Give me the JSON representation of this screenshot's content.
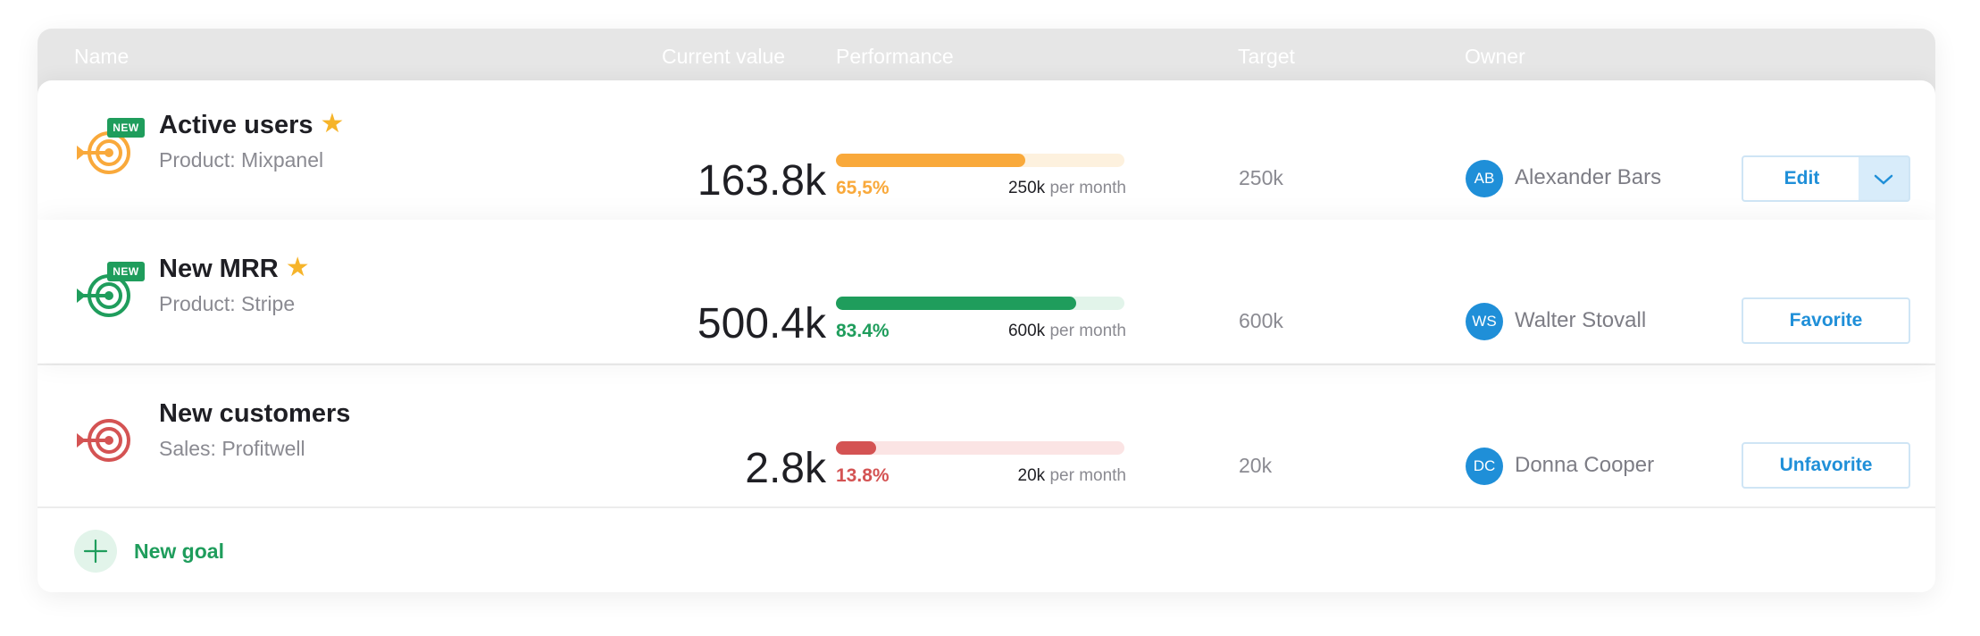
{
  "header": {
    "name": "Name",
    "current_value": "Current value",
    "performance": "Performance",
    "target": "Target",
    "owner": "Owner"
  },
  "goals": [
    {
      "title": "Active users",
      "badge": "NEW",
      "starred": true,
      "source": "Product: Mixpanel",
      "current_value": "163.8k",
      "performance_label": "65,5%",
      "progress": 0.655,
      "target_amount": "250k",
      "period": "per month",
      "target": "250k",
      "owner_initials": "AB",
      "owner_name": "Alexander Bars",
      "action": "Edit",
      "color": "#f9a93b",
      "track_color": "#fdf1de"
    },
    {
      "title": "New MRR",
      "badge": "NEW",
      "starred": true,
      "source": "Product: Stripe",
      "current_value": "500.4k",
      "performance_label": "83.4%",
      "progress": 0.834,
      "target_amount": "600k",
      "period": "per month",
      "target": "600k",
      "owner_initials": "WS",
      "owner_name": "Walter Stovall",
      "action": "Favorite",
      "color": "#1f9d5c",
      "track_color": "#e2f4ea"
    },
    {
      "title": "New customers",
      "badge": "",
      "starred": false,
      "source": "Sales: Profitwell",
      "current_value": "2.8k",
      "performance_label": "13.8%",
      "progress": 0.138,
      "target_amount": "20k",
      "period": "per month",
      "target": "20k",
      "owner_initials": "DC",
      "owner_name": "Donna Cooper",
      "action": "Unfavorite",
      "color": "#d45353",
      "track_color": "#fbe4e4"
    }
  ],
  "footer": {
    "add_label": "New goal"
  },
  "colors": {
    "accent_blue": "#1f8fd8",
    "star": "#f6b42a",
    "badge_green": "#1f9d5c"
  },
  "icons": {
    "goal": "target-arrow-icon",
    "star": "star-icon",
    "dropdown": "chevron-down-icon",
    "add": "plus-icon"
  }
}
